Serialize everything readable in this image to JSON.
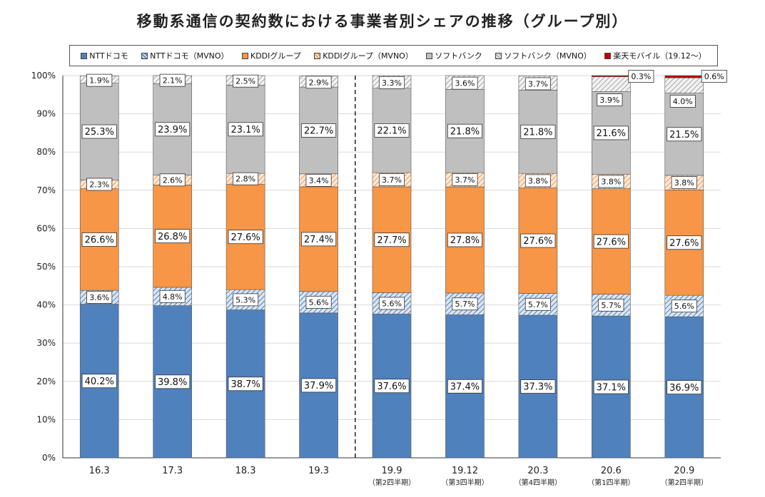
{
  "chart_data": {
    "type": "stacked-bar",
    "title": "移動系通信の契約数における事業者別シェアの推移（グループ別）",
    "categories": [
      "16.3",
      "17.3",
      "18.3",
      "19.3",
      "19.9",
      "19.12",
      "20.3",
      "20.6",
      "20.9"
    ],
    "sub_labels": [
      "",
      "",
      "",
      "",
      "（第2四半期）",
      "（第3四半期）",
      "（第4四半期）",
      "（第1四半期）",
      "（第2四半期）"
    ],
    "ylim": [
      0,
      100
    ],
    "y_ticks": [
      "0%",
      "10%",
      "20%",
      "30%",
      "40%",
      "50%",
      "60%",
      "70%",
      "80%",
      "90%",
      "100%"
    ],
    "divider_after_index": 3,
    "series": [
      {
        "name": "NTTドコモ",
        "color": "#4f81bd",
        "pattern": "solid",
        "values": [
          40.2,
          39.8,
          38.7,
          37.9,
          37.6,
          37.4,
          37.3,
          37.1,
          36.9
        ],
        "labels": [
          "40.2%",
          "39.8%",
          "38.7%",
          "37.9%",
          "37.6%",
          "37.4%",
          "37.3%",
          "37.1%",
          "36.9%"
        ]
      },
      {
        "name": "NTTドコモ（MVNO）",
        "color": "#4f81bd",
        "pattern": "hatch",
        "values": [
          3.6,
          4.8,
          5.3,
          5.6,
          5.6,
          5.7,
          5.7,
          5.7,
          5.6
        ],
        "labels": [
          "3.6%",
          "4.8%",
          "5.3%",
          "5.6%",
          "5.6%",
          "5.7%",
          "5.7%",
          "5.7%",
          "5.6%"
        ]
      },
      {
        "name": "KDDIグループ",
        "color": "#f79646",
        "pattern": "solid",
        "values": [
          26.6,
          26.8,
          27.6,
          27.4,
          27.7,
          27.8,
          27.6,
          27.6,
          27.6
        ],
        "labels": [
          "26.6%",
          "26.8%",
          "27.6%",
          "27.4%",
          "27.7%",
          "27.8%",
          "27.6%",
          "27.6%",
          "27.6%"
        ]
      },
      {
        "name": "KDDIグループ（MVNO）",
        "color": "#f79646",
        "pattern": "hatch",
        "values": [
          2.3,
          2.6,
          2.8,
          3.4,
          3.7,
          3.7,
          3.8,
          3.8,
          3.8
        ],
        "labels": [
          "2.3%",
          "2.6%",
          "2.8%",
          "3.4%",
          "3.7%",
          "3.7%",
          "3.8%",
          "3.8%",
          "3.8%"
        ]
      },
      {
        "name": "ソフトバンク",
        "color": "#bfbfbf",
        "pattern": "solid",
        "values": [
          25.3,
          23.9,
          23.1,
          22.7,
          22.1,
          21.8,
          21.8,
          21.6,
          21.5
        ],
        "labels": [
          "25.3%",
          "23.9%",
          "23.1%",
          "22.7%",
          "22.1%",
          "21.8%",
          "21.8%",
          "21.6%",
          "21.5%"
        ]
      },
      {
        "name": "ソフトバンク（MVNO）",
        "color": "#bfbfbf",
        "pattern": "hatch",
        "values": [
          1.9,
          2.1,
          2.5,
          2.9,
          3.3,
          3.6,
          3.7,
          3.9,
          4.0
        ],
        "labels": [
          "1.9%",
          "2.1%",
          "2.5%",
          "2.9%",
          "3.3%",
          "3.6%",
          "3.7%",
          "3.9%",
          "4.0%"
        ]
      },
      {
        "name": "楽天モバイル（19.12～）",
        "color": "#c00000",
        "pattern": "solid",
        "values": [
          0,
          0,
          0,
          0,
          0,
          0,
          0,
          0.3,
          0.6
        ],
        "labels": [
          "",
          "",
          "",
          "",
          "",
          "",
          "",
          "0.3%",
          "0.6%"
        ]
      }
    ]
  }
}
